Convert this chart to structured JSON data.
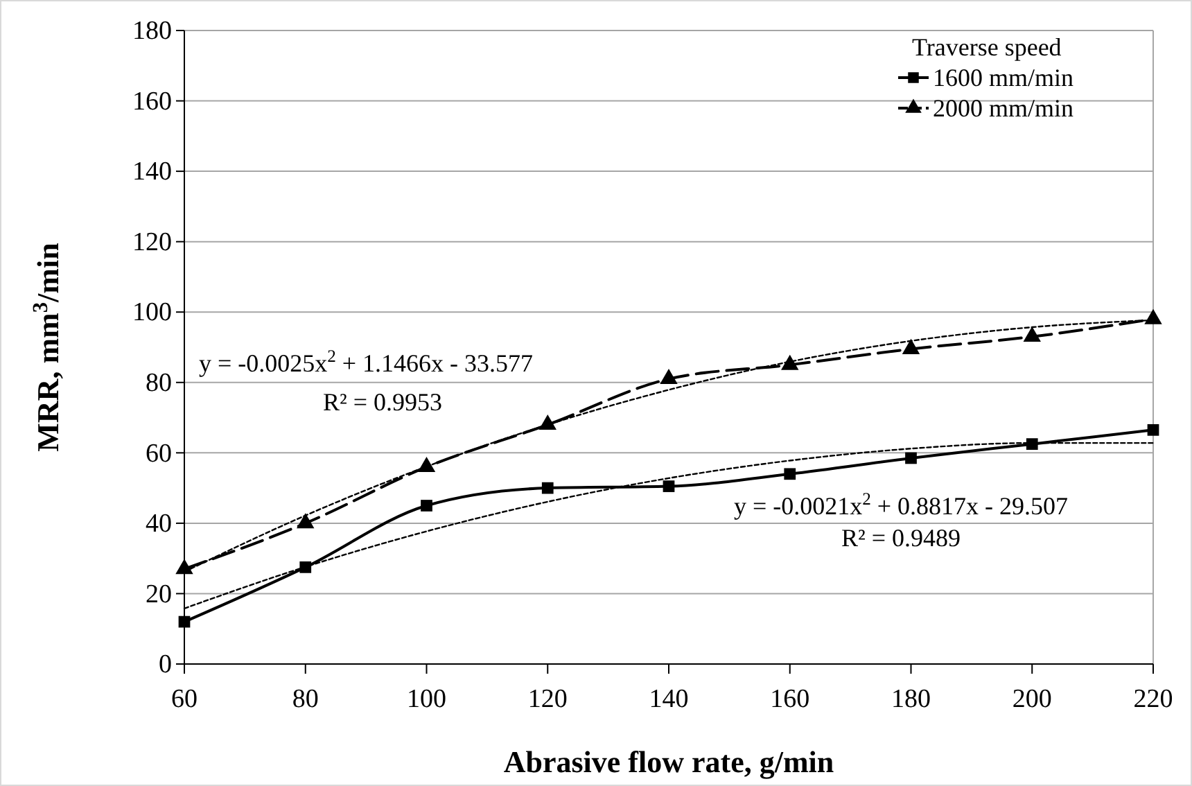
{
  "chart_data": {
    "type": "line",
    "xlabel": "Abrasive flow rate, g/min",
    "ylabel": "MRR, mm$^{3}$/min",
    "legend_title": "Traverse speed",
    "x": [
      60,
      80,
      100,
      120,
      140,
      160,
      180,
      200,
      220
    ],
    "xlim": [
      60,
      220
    ],
    "xticks": [
      60,
      80,
      100,
      120,
      140,
      160,
      180,
      200,
      220
    ],
    "ylim": [
      0,
      180
    ],
    "yticks": [
      0,
      20,
      40,
      60,
      80,
      100,
      120,
      140,
      160,
      180
    ],
    "grid": "y",
    "legend": "top right",
    "series": [
      {
        "name": "1600 mm/min",
        "color": "#000000",
        "marker": "square",
        "line_style": "solid",
        "values": [
          12,
          27.5,
          45,
          50,
          50.5,
          54,
          58.5,
          62.5,
          66.5
        ]
      },
      {
        "name": "2000 mm/min",
        "color": "#000000",
        "marker": "triangle",
        "line_style": "dashed",
        "values": [
          27,
          40,
          56,
          68,
          81,
          85,
          89.5,
          93,
          98
        ]
      },
      {
        "type": "line",
        "color": "#000000",
        "marker": "none",
        "line_style": "dotted",
        "x": [
          60,
          80,
          100,
          120,
          140,
          160,
          180,
          200,
          220
        ],
        "values": [
          15.8,
          27.6,
          37.7,
          46.1,
          52.8,
          57.8,
          61.2,
          62.8,
          62.8
        ]
      },
      {
        "type": "line",
        "color": "#000000",
        "marker": "none",
        "line_style": "dotted",
        "x": [
          60,
          80,
          100,
          120,
          140,
          160,
          180,
          200,
          220
        ],
        "values": [
          26.2,
          42.2,
          56.1,
          68,
          77.9,
          85.9,
          91.8,
          95.7,
          97.7
        ]
      }
    ],
    "annotations": [
      "y = -0.0025x$^{2}$ + 1.1466x - 33.577",
      "R² = 0.9953",
      "y = -0.0021x$^{2}$ + 0.8817x - 29.507",
      "R² = 0.9489"
    ]
  }
}
